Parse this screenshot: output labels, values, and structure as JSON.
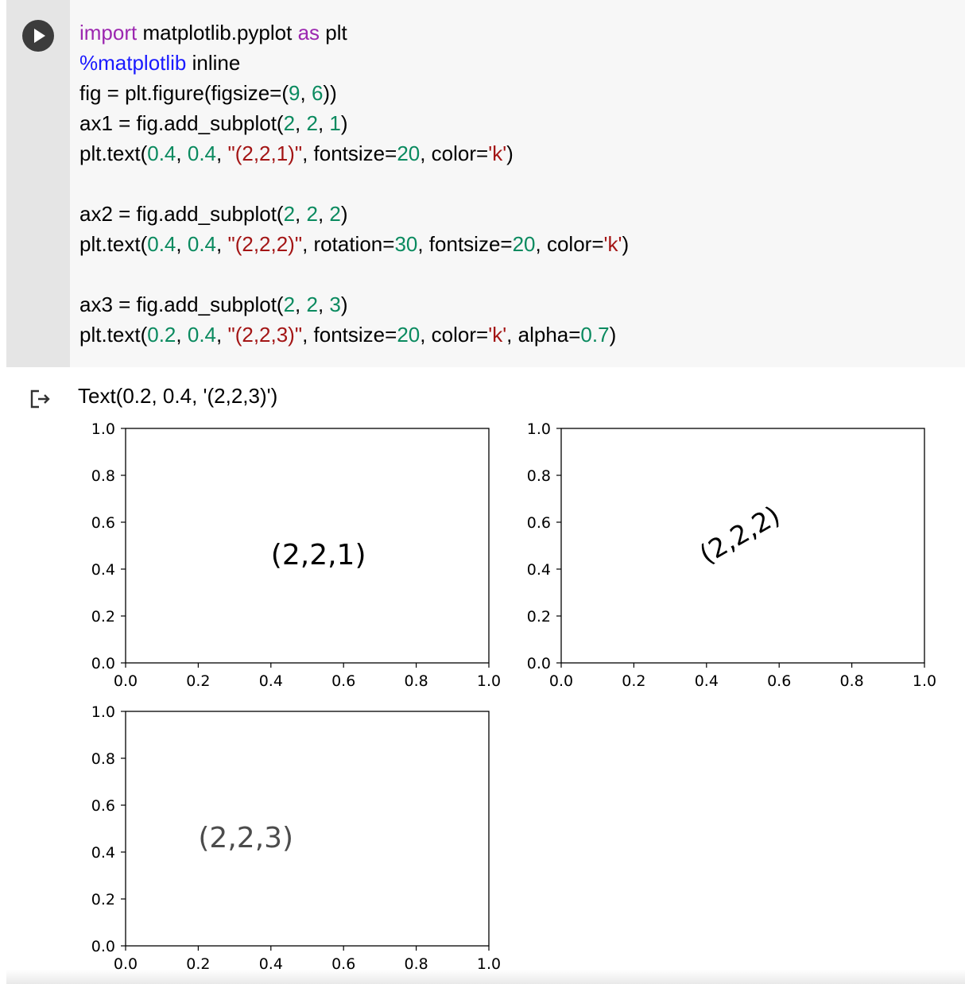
{
  "cell": {
    "run_icon": "play-icon",
    "code_lines": [
      [
        [
          "import",
          "kw"
        ],
        [
          " matplotlib.pyplot ",
          ""
        ],
        [
          "as",
          "kw"
        ],
        [
          " plt",
          ""
        ]
      ],
      [
        [
          "%matplotlib",
          "mg"
        ],
        [
          " inline",
          ""
        ]
      ],
      [
        [
          "fig = plt.figure(figsize=(",
          ""
        ],
        [
          "9",
          "num"
        ],
        [
          ", ",
          ""
        ],
        [
          "6",
          "num"
        ],
        [
          "))",
          ""
        ]
      ],
      [
        [
          "ax1 = fig.add_subplot(",
          ""
        ],
        [
          "2",
          "num"
        ],
        [
          ", ",
          ""
        ],
        [
          "2",
          "num"
        ],
        [
          ", ",
          ""
        ],
        [
          "1",
          "num"
        ],
        [
          ")",
          ""
        ]
      ],
      [
        [
          "plt.text(",
          ""
        ],
        [
          "0.4",
          "num"
        ],
        [
          ", ",
          ""
        ],
        [
          "0.4",
          "num"
        ],
        [
          ", ",
          ""
        ],
        [
          "\"(2,2,1)\"",
          "str"
        ],
        [
          ", fontsize=",
          ""
        ],
        [
          "20",
          "num"
        ],
        [
          ", color=",
          ""
        ],
        [
          "'k'",
          "str"
        ],
        [
          ")",
          ""
        ]
      ],
      [],
      [
        [
          "ax2 = fig.add_subplot(",
          ""
        ],
        [
          "2",
          "num"
        ],
        [
          ", ",
          ""
        ],
        [
          "2",
          "num"
        ],
        [
          ", ",
          ""
        ],
        [
          "2",
          "num"
        ],
        [
          ")",
          ""
        ]
      ],
      [
        [
          "plt.text(",
          ""
        ],
        [
          "0.4",
          "num"
        ],
        [
          ", ",
          ""
        ],
        [
          "0.4",
          "num"
        ],
        [
          ", ",
          ""
        ],
        [
          "\"(2,2,2)\"",
          "str"
        ],
        [
          ", rotation=",
          ""
        ],
        [
          "30",
          "num"
        ],
        [
          ", fontsize=",
          ""
        ],
        [
          "20",
          "num"
        ],
        [
          ", color=",
          ""
        ],
        [
          "'k'",
          "str"
        ],
        [
          ")",
          ""
        ]
      ],
      [],
      [
        [
          "ax3 = fig.add_subplot(",
          ""
        ],
        [
          "2",
          "num"
        ],
        [
          ", ",
          ""
        ],
        [
          "2",
          "num"
        ],
        [
          ", ",
          ""
        ],
        [
          "3",
          "num"
        ],
        [
          ")",
          ""
        ]
      ],
      [
        [
          "plt.text(",
          ""
        ],
        [
          "0.2",
          "num"
        ],
        [
          ", ",
          ""
        ],
        [
          "0.4",
          "num"
        ],
        [
          ", ",
          ""
        ],
        [
          "\"(2,2,3)\"",
          "str"
        ],
        [
          ", fontsize=",
          ""
        ],
        [
          "20",
          "num"
        ],
        [
          ", color=",
          ""
        ],
        [
          "'k'",
          "str"
        ],
        [
          ", alpha=",
          ""
        ],
        [
          "0.7",
          "num"
        ],
        [
          ")",
          ""
        ]
      ]
    ]
  },
  "output": {
    "icon": "output-redirect-icon",
    "text": "Text(0.2, 0.4, '(2,2,3)')"
  },
  "colors": {
    "keyword": "#9c27b0",
    "magic": "#1a1aff",
    "number": "#0a8a5f",
    "string": "#a31515"
  },
  "chart_data": [
    {
      "type": "scatter",
      "name": "ax1",
      "xlim": [
        0,
        1
      ],
      "ylim": [
        0,
        1
      ],
      "x_ticks": [
        "0.0",
        "0.2",
        "0.4",
        "0.6",
        "0.8",
        "1.0"
      ],
      "y_ticks": [
        "0.0",
        "0.2",
        "0.4",
        "0.6",
        "0.8",
        "1.0"
      ],
      "annotations": [
        {
          "x": 0.4,
          "y": 0.4,
          "text": "(2,2,1)",
          "rotation": 0,
          "alpha": 1.0
        }
      ]
    },
    {
      "type": "scatter",
      "name": "ax2",
      "xlim": [
        0,
        1
      ],
      "ylim": [
        0,
        1
      ],
      "x_ticks": [
        "0.0",
        "0.2",
        "0.4",
        "0.6",
        "0.8",
        "1.0"
      ],
      "y_ticks": [
        "0.0",
        "0.2",
        "0.4",
        "0.6",
        "0.8",
        "1.0"
      ],
      "annotations": [
        {
          "x": 0.4,
          "y": 0.4,
          "text": "(2,2,2)",
          "rotation": 30,
          "alpha": 1.0
        }
      ]
    },
    {
      "type": "scatter",
      "name": "ax3",
      "xlim": [
        0,
        1
      ],
      "ylim": [
        0,
        1
      ],
      "x_ticks": [
        "0.0",
        "0.2",
        "0.4",
        "0.6",
        "0.8",
        "1.0"
      ],
      "y_ticks": [
        "0.0",
        "0.2",
        "0.4",
        "0.6",
        "0.8",
        "1.0"
      ],
      "annotations": [
        {
          "x": 0.2,
          "y": 0.4,
          "text": "(2,2,3)",
          "rotation": 0,
          "alpha": 0.7
        }
      ]
    }
  ]
}
